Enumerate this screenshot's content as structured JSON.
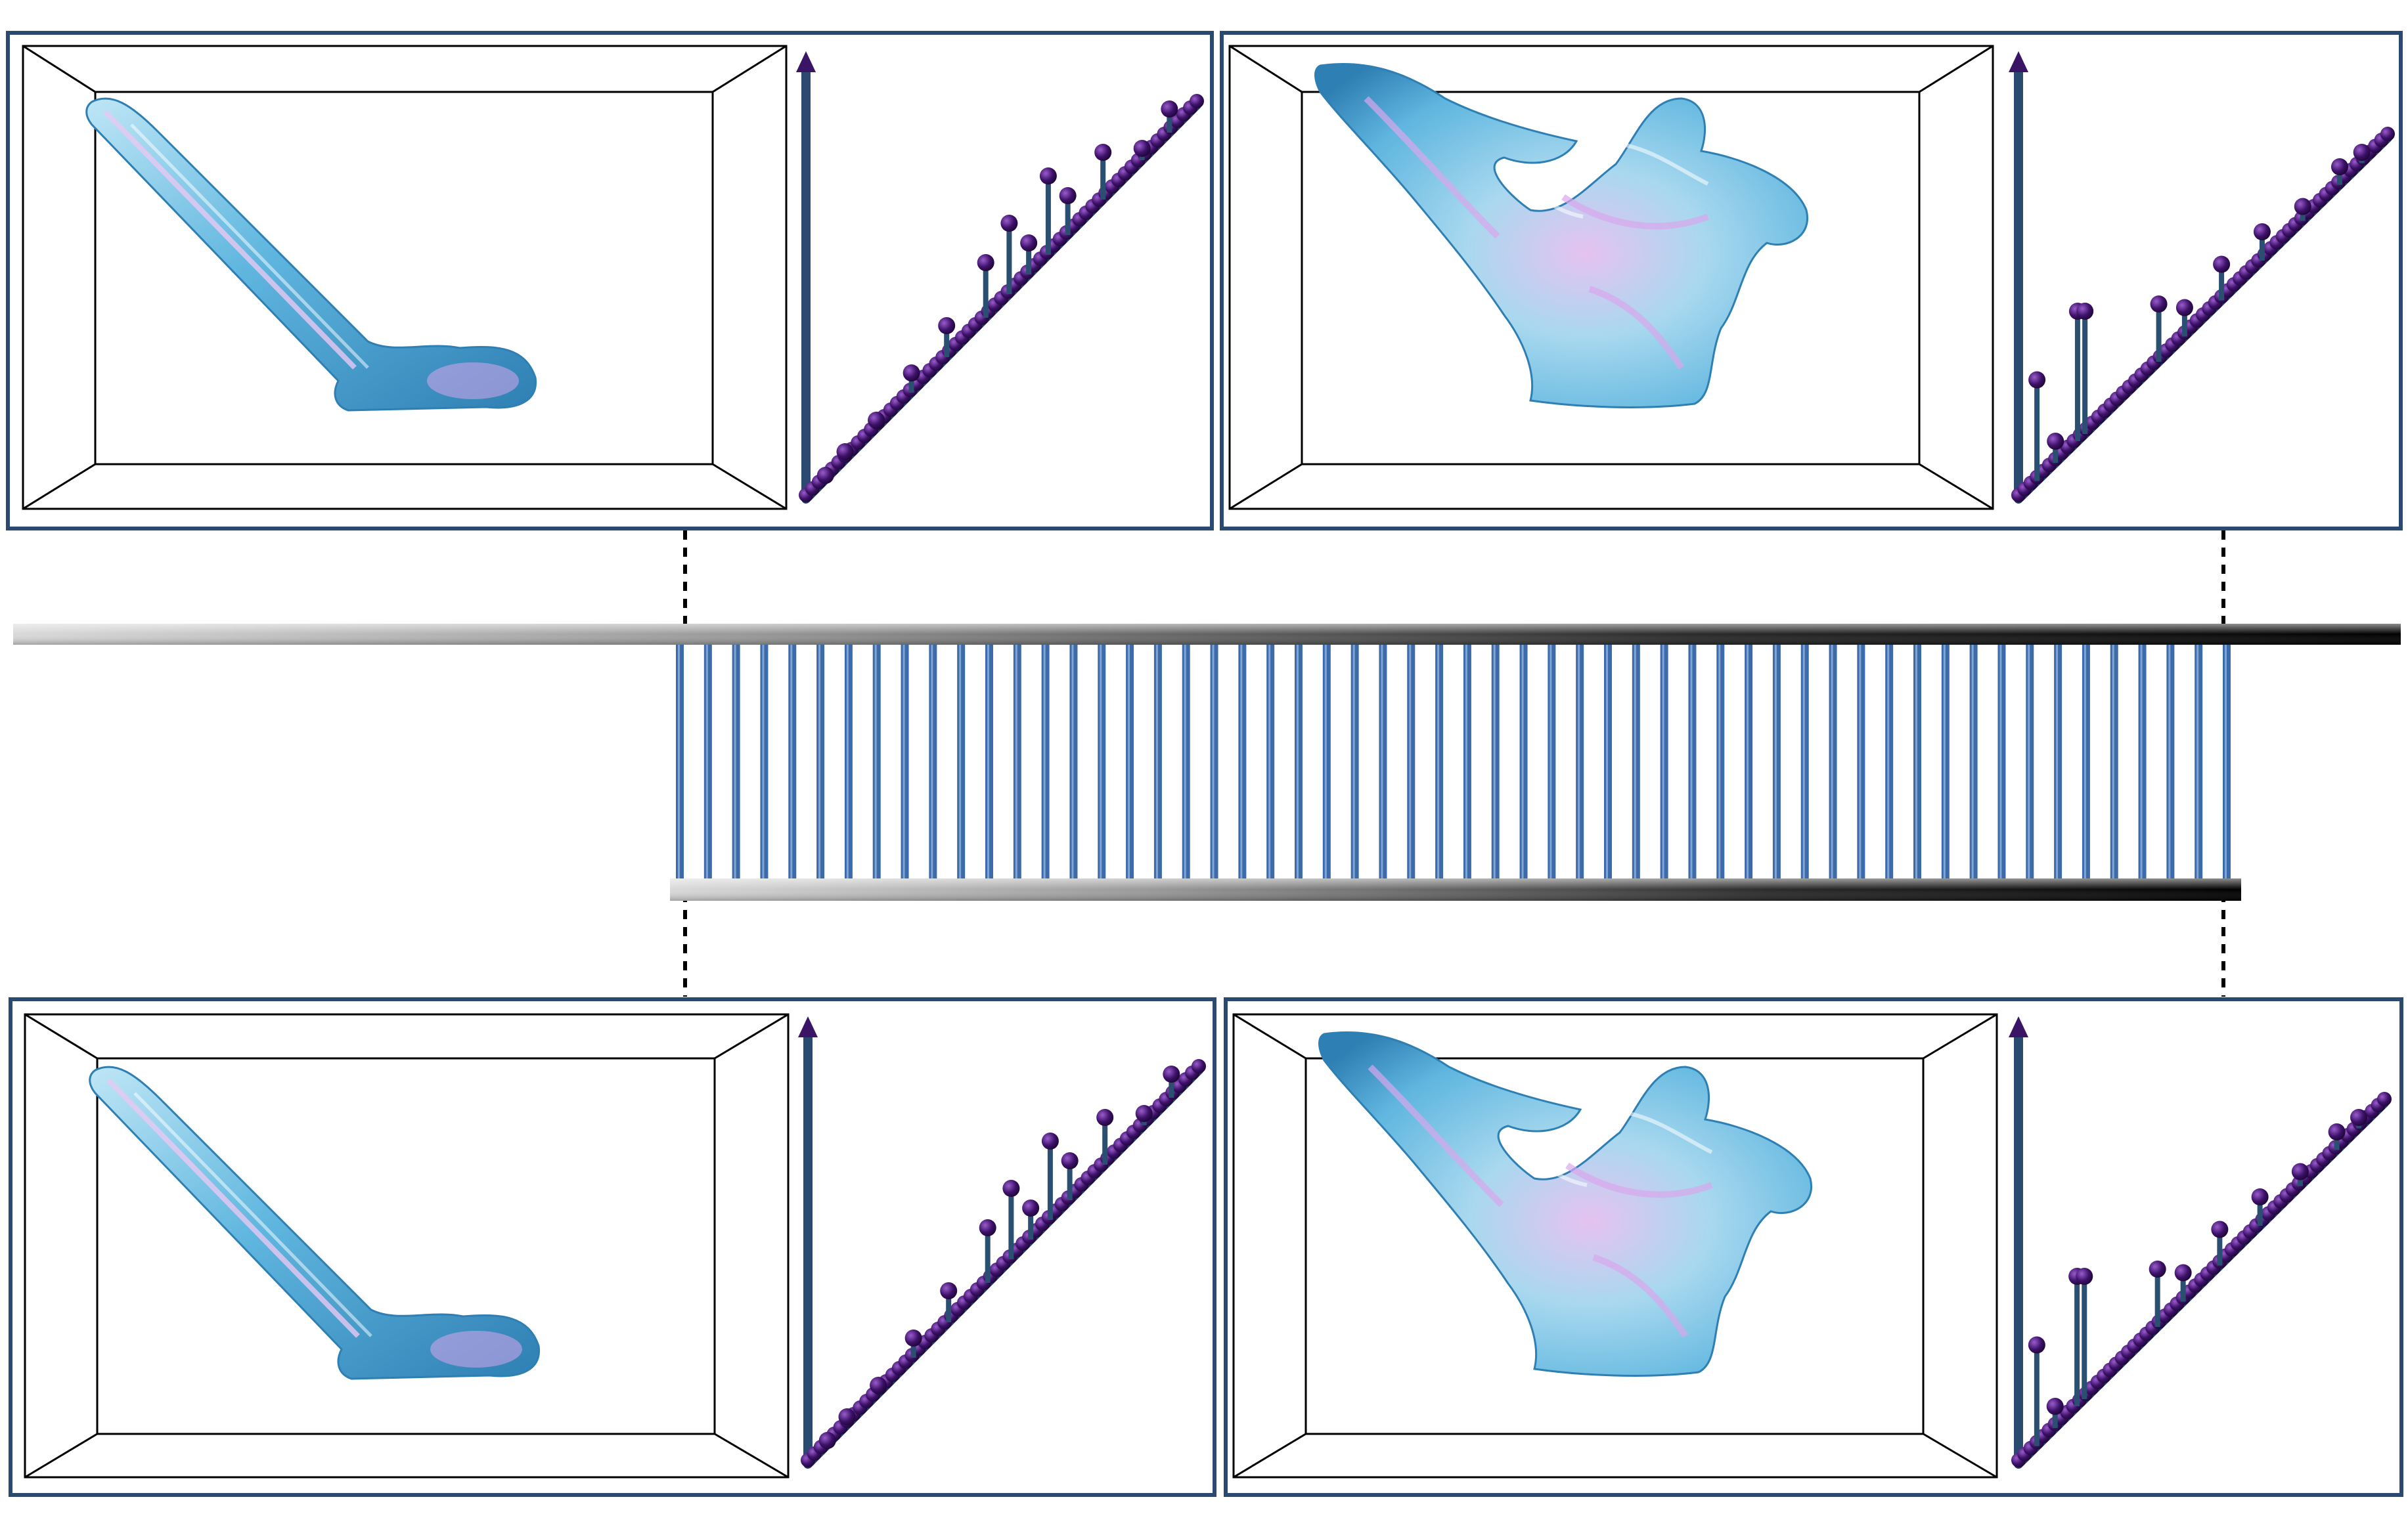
{
  "colors": {
    "frame_border": "#2b4a70",
    "box_line": "#000000",
    "axis": "#2b4a70",
    "axis_head": "#3a1566",
    "persistence_point": "#3d1169",
    "persistence_point_light": "#7a3ab0",
    "diagonal": "#1f3d66",
    "rung": "#3d6aa8",
    "rail_light": "#cfcfcf",
    "rail_dark": "#000000",
    "fluid_light": "#bfe6f6",
    "fluid_mid": "#6cc1e3",
    "fluid_dark": "#2e7fb3",
    "fluid_pink": "#d8a6ec"
  },
  "panels": [
    {
      "id": "top-left",
      "plume": "jet"
    },
    {
      "id": "top-right",
      "plume": "splash"
    },
    {
      "id": "bottom-left",
      "plume": "jet"
    },
    {
      "id": "bottom-right",
      "plume": "splash"
    }
  ],
  "diagrams": [
    {
      "id": "top-left",
      "bars": [
        [
          0.93,
          0.06
        ],
        [
          0.86,
          0.03
        ],
        [
          0.76,
          0.12
        ],
        [
          0.67,
          0.1
        ],
        [
          0.62,
          0.2
        ],
        [
          0.57,
          0.08
        ],
        [
          0.52,
          0.18
        ],
        [
          0.46,
          0.14
        ],
        [
          0.36,
          0.08
        ],
        [
          0.27,
          0.05
        ],
        [
          0.18,
          0.02
        ],
        [
          0.1,
          0.02
        ],
        [
          0.05,
          0.01
        ]
      ]
    },
    {
      "id": "top-right",
      "bars": [
        [
          0.05,
          0.28
        ],
        [
          0.1,
          0.06
        ],
        [
          0.16,
          0.36
        ],
        [
          0.18,
          0.34
        ],
        [
          0.38,
          0.16
        ],
        [
          0.45,
          0.08
        ],
        [
          0.55,
          0.1
        ],
        [
          0.66,
          0.08
        ],
        [
          0.77,
          0.04
        ],
        [
          0.87,
          0.05
        ],
        [
          0.93,
          0.03
        ]
      ]
    },
    {
      "id": "bottom-left",
      "bars": [
        [
          0.93,
          0.06
        ],
        [
          0.86,
          0.03
        ],
        [
          0.76,
          0.12
        ],
        [
          0.67,
          0.1
        ],
        [
          0.62,
          0.2
        ],
        [
          0.57,
          0.08
        ],
        [
          0.52,
          0.18
        ],
        [
          0.46,
          0.14
        ],
        [
          0.36,
          0.08
        ],
        [
          0.27,
          0.05
        ],
        [
          0.18,
          0.02
        ],
        [
          0.1,
          0.02
        ],
        [
          0.05,
          0.01
        ]
      ]
    },
    {
      "id": "bottom-right",
      "bars": [
        [
          0.05,
          0.28
        ],
        [
          0.1,
          0.06
        ],
        [
          0.16,
          0.36
        ],
        [
          0.18,
          0.34
        ],
        [
          0.38,
          0.16
        ],
        [
          0.45,
          0.08
        ],
        [
          0.55,
          0.1
        ],
        [
          0.66,
          0.08
        ],
        [
          0.77,
          0.04
        ],
        [
          0.87,
          0.05
        ],
        [
          0.93,
          0.03
        ]
      ]
    }
  ],
  "ladder": {
    "rung_count": 56
  }
}
